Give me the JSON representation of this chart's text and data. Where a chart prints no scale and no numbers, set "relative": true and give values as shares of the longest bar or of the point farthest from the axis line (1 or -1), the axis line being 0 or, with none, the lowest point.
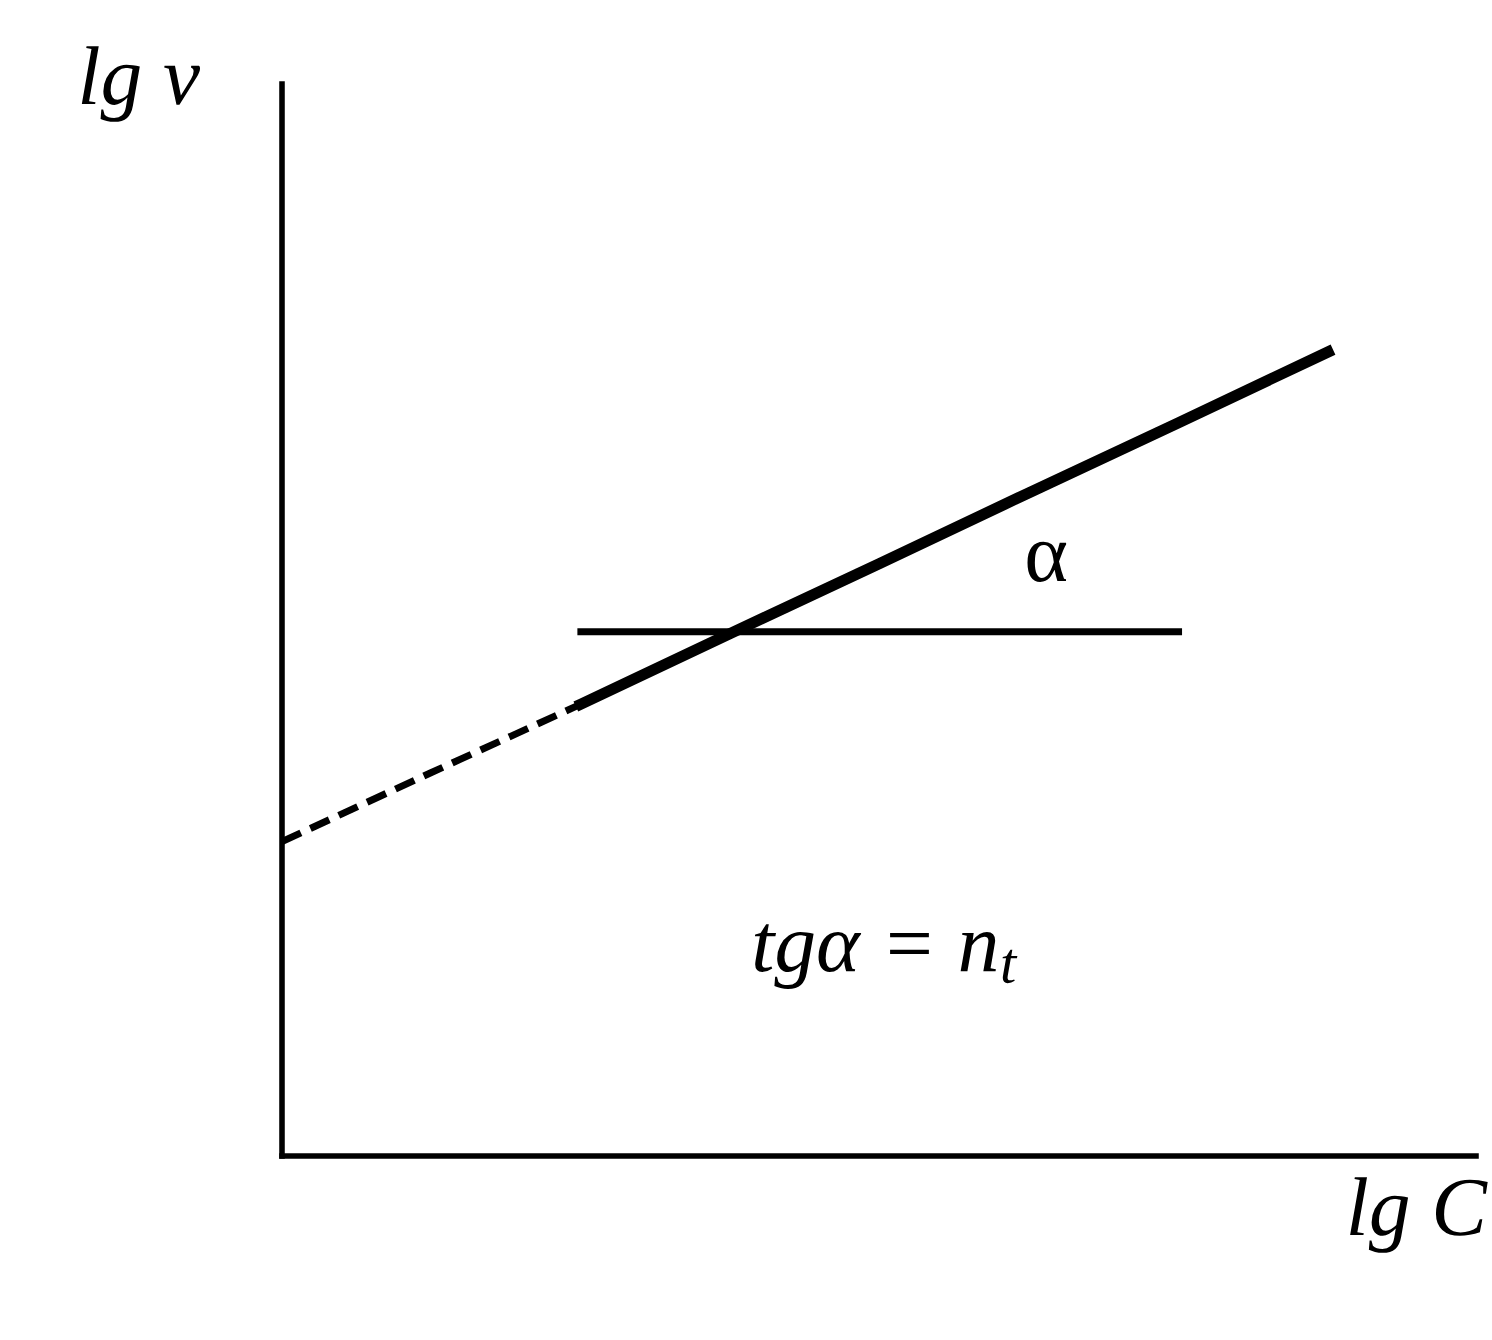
{
  "chart_data": {
    "type": "line",
    "relative": true,
    "xlabel": "lg C",
    "ylabel": "lg v",
    "categories": [
      null,
      null,
      null,
      null,
      null,
      null,
      null,
      null
    ],
    "series": [
      {
        "color": "#000000",
        "line_style": "dashed",
        "values": [
          0.391,
          0.477,
          0.562,
          null,
          null,
          null,
          null,
          null
        ]
      },
      {
        "color": "#000000",
        "line_style": "solid",
        "values": [
          null,
          null,
          0.562,
          0.65,
          0.737,
          0.825,
          0.912,
          1.0
        ]
      },
      {
        "color": "#000000",
        "line_style": "solid",
        "values": [
          null,
          null,
          0.652,
          0.652,
          0.652,
          0.652,
          0.652,
          null
        ]
      }
    ],
    "annotations": [
      "α",
      "tgα = n$_{t}$"
    ],
    "legend": false,
    "marker": "none"
  }
}
